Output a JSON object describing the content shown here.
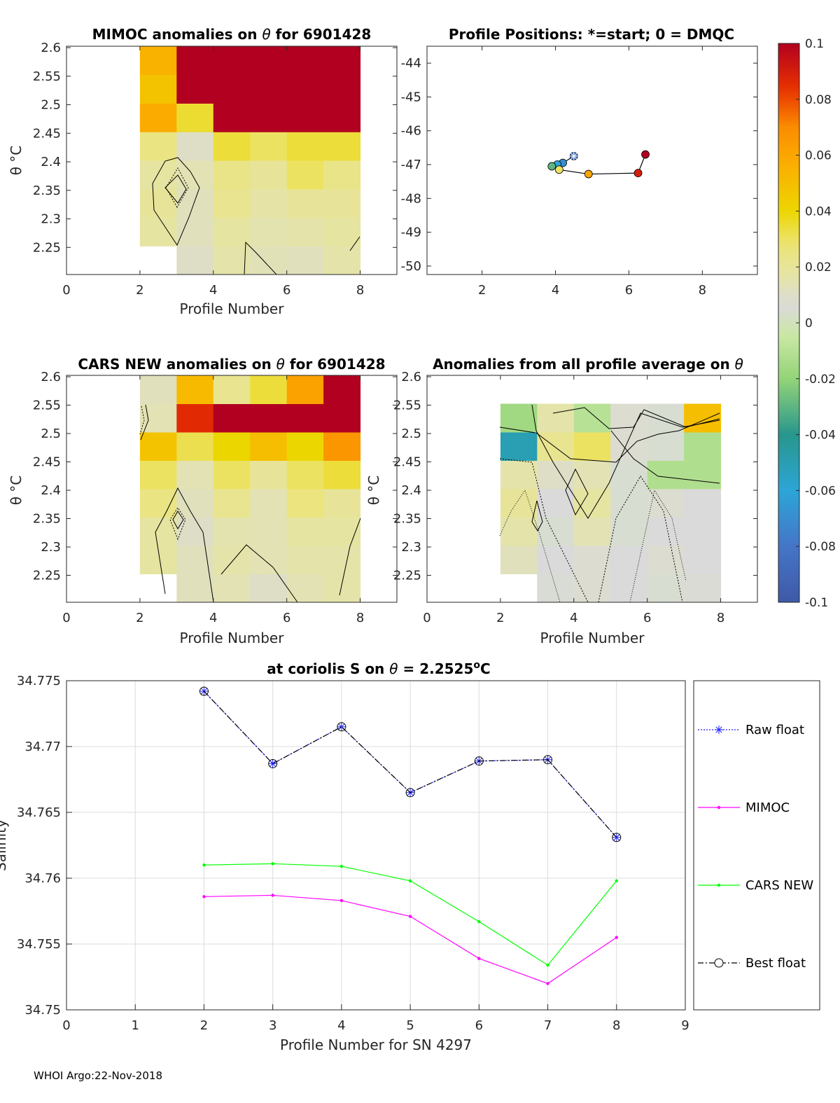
{
  "figure": {
    "footer": "WHOI Argo:22-Nov-2018"
  },
  "colors": {
    "raw_float": "#1f1fff",
    "mimoc": "#ff00ff",
    "cars_new": "#00ff00",
    "best_float": "#000000",
    "grid": "#dcdcdc",
    "axis": "#262626"
  },
  "chart_data": [
    {
      "id": "mimoc",
      "type": "heatmap",
      "title_prefix": "MIMOC anomalies on ",
      "title_symbol": "θ",
      "title_suffix": "  for 6901428",
      "xlabel": "Profile Number",
      "ylabel": "θ °C",
      "xlim": [
        0,
        9
      ],
      "ylim": [
        2.2025,
        2.6025
      ],
      "xticks": [
        "0",
        "2",
        "4",
        "6",
        "8"
      ],
      "yticks": [
        "2.25",
        "2.3",
        "2.35",
        "2.4",
        "2.45",
        "2.5",
        "2.55",
        "2.6"
      ],
      "cols": [
        2,
        3,
        4,
        5,
        6,
        7
      ],
      "row_edges": [
        2.2025,
        2.2525,
        2.3025,
        2.3525,
        2.4025,
        2.4525,
        2.5025,
        2.5525,
        2.6025
      ],
      "values": [
        [
          null,
          0.01,
          0.016,
          0.013,
          0.012,
          0.016
        ],
        [
          0.018,
          0.012,
          0.018,
          0.015,
          0.016,
          0.018
        ],
        [
          0.02,
          0.012,
          0.022,
          0.017,
          0.02,
          0.02
        ],
        [
          0.018,
          0.014,
          0.024,
          0.02,
          0.03,
          0.024
        ],
        [
          0.025,
          0.01,
          0.034,
          0.03,
          0.034,
          0.034
        ],
        [
          0.058,
          0.035,
          0.1,
          0.1,
          0.1,
          0.1
        ],
        [
          0.048,
          0.1,
          0.1,
          0.1,
          0.1,
          0.1
        ],
        [
          0.055,
          0.1,
          0.1,
          0.1,
          0.1,
          0.1
        ]
      ]
    },
    {
      "id": "positions",
      "type": "scatter",
      "title": "Profile Positions: *=start; 0 = DMQC",
      "xlim": [
        0.5,
        9.5
      ],
      "ylim": [
        -50.25,
        -43.5
      ],
      "xticks": [
        "2",
        "4",
        "6",
        "8"
      ],
      "yticks": [
        "-44",
        "-45",
        "-46",
        "-47",
        "-48",
        "-49",
        "-50"
      ],
      "track": [
        {
          "x": 4.5,
          "y": -46.75,
          "v": -0.08
        },
        {
          "x": 4.2,
          "y": -46.95,
          "v": -0.07
        },
        {
          "x": 4.05,
          "y": -47.0,
          "v": -0.06
        },
        {
          "x": 3.9,
          "y": -47.05,
          "v": -0.03
        },
        {
          "x": 4.1,
          "y": -47.15,
          "v": 0.03
        },
        {
          "x": 4.9,
          "y": -47.28,
          "v": 0.06
        },
        {
          "x": 6.25,
          "y": -47.25,
          "v": 0.09
        },
        {
          "x": 6.45,
          "y": -46.7,
          "v": 0.1
        }
      ]
    },
    {
      "id": "cars",
      "type": "heatmap",
      "title_prefix": "CARS NEW anomalies on ",
      "title_symbol": "θ",
      "title_suffix": " for 6901428",
      "xlabel": "Profile Number",
      "ylabel": "θ °C",
      "xlim": [
        0,
        9
      ],
      "ylim": [
        2.2025,
        2.6025
      ],
      "xticks": [
        "0",
        "2",
        "4",
        "6",
        "8"
      ],
      "yticks": [
        "2.25",
        "2.3",
        "2.35",
        "2.4",
        "2.45",
        "2.5",
        "2.55",
        "2.6"
      ],
      "cols": [
        2,
        3,
        4,
        5,
        6,
        7
      ],
      "row_edges": [
        2.2025,
        2.2525,
        2.3025,
        2.3525,
        2.4025,
        2.4525,
        2.5025,
        2.5525,
        2.6025
      ],
      "values": [
        [
          null,
          0.012,
          0.014,
          0.01,
          0.014,
          0.016
        ],
        [
          0.018,
          0.012,
          0.016,
          0.014,
          0.016,
          0.016
        ],
        [
          0.018,
          0.01,
          0.015,
          0.014,
          0.018,
          0.018
        ],
        [
          0.025,
          0.012,
          0.022,
          0.014,
          0.026,
          0.02
        ],
        [
          0.03,
          0.014,
          0.03,
          0.02,
          0.03,
          0.034
        ],
        [
          0.048,
          0.032,
          0.04,
          0.05,
          0.04,
          0.066
        ],
        [
          0.014,
          0.086,
          0.1,
          0.1,
          0.1,
          0.1
        ],
        [
          0.012,
          0.052,
          0.022,
          0.034,
          0.062,
          0.1
        ]
      ]
    },
    {
      "id": "avg",
      "type": "heatmap",
      "title_prefix": "Anomalies from all profile average on ",
      "title_symbol": "θ",
      "title_suffix": "",
      "xlabel": "Profile Number",
      "ylabel": "θ °C",
      "xlim": [
        0,
        9
      ],
      "ylim": [
        2.2025,
        2.6025
      ],
      "xticks": [
        "0",
        "2",
        "4",
        "6",
        "8"
      ],
      "yticks": [
        "2.25",
        "2.3",
        "2.35",
        "2.4",
        "2.45",
        "2.5",
        "2.55",
        "2.6"
      ],
      "cols": [
        2,
        3,
        4,
        5,
        6,
        7
      ],
      "row_edges": [
        2.2025,
        2.2525,
        2.3025,
        2.3525,
        2.4025,
        2.4525,
        2.5025,
        2.5525,
        2.6025
      ],
      "values": [
        [
          null,
          0.005,
          0.008,
          0.006,
          0.004,
          0.007
        ],
        [
          0.012,
          0.006,
          0.008,
          0.006,
          0.008,
          0.006
        ],
        [
          0.016,
          0.004,
          0.014,
          0.004,
          0.006,
          0.006
        ],
        [
          0.02,
          0.006,
          0.018,
          0.004,
          0.008,
          0.006
        ],
        [
          0.016,
          0.01,
          0.014,
          0.004,
          -0.012,
          -0.012
        ],
        [
          -0.05,
          0.022,
          0.03,
          0.008,
          0.004,
          -0.012
        ],
        [
          -0.016,
          0.016,
          -0.01,
          0.008,
          0.004,
          0.05
        ],
        [
          null,
          null,
          null,
          null,
          null,
          null
        ]
      ]
    },
    {
      "id": "colorbar",
      "type": "colorbar",
      "range": [
        -0.1,
        0.1
      ],
      "ticks": [
        "0.1",
        "0.08",
        "0.06",
        "0.04",
        "0.02",
        "0",
        "-0.02",
        "-0.04",
        "-0.06",
        "-0.08",
        "-0.1"
      ]
    },
    {
      "id": "salinity",
      "type": "line",
      "title_prefix": "at coriolis S on ",
      "title_symbol": "θ",
      "title_suffix": " = 2.2525",
      "title_degree": "o",
      "title_unit": "C",
      "xlabel": "Profile Number for SN 4297",
      "ylabel": "Salinity",
      "xlim": [
        0,
        9
      ],
      "ylim": [
        34.75,
        34.775
      ],
      "xticks": [
        "0",
        "1",
        "2",
        "3",
        "4",
        "5",
        "6",
        "7",
        "8",
        "9"
      ],
      "yticks": [
        "34.75",
        "34.755",
        "34.76",
        "34.765",
        "34.77",
        "34.775"
      ],
      "x": [
        2,
        3,
        4,
        5,
        6,
        7,
        8
      ],
      "series": [
        {
          "name": "Raw float",
          "values": [
            34.7742,
            34.7687,
            34.7715,
            34.7665,
            34.7689,
            34.769,
            34.7631
          ],
          "color": "#1f1fff"
        },
        {
          "name": "MIMOC",
          "values": [
            34.7586,
            34.7587,
            34.7583,
            34.7571,
            34.7539,
            34.752,
            34.7555
          ],
          "color": "#ff00ff"
        },
        {
          "name": "CARS NEW",
          "values": [
            34.761,
            34.7611,
            34.7609,
            34.7598,
            34.7567,
            34.7534,
            34.7598
          ],
          "color": "#00ff00"
        },
        {
          "name": "Best float",
          "values": [
            34.7742,
            34.7687,
            34.7715,
            34.7665,
            34.7689,
            34.769,
            34.7631
          ],
          "color": "#000000"
        }
      ]
    }
  ]
}
